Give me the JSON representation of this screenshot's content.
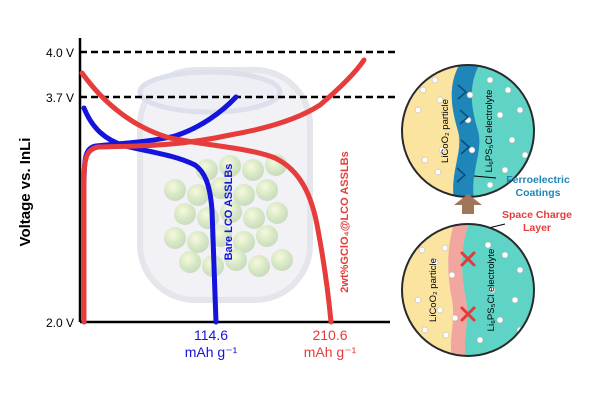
{
  "chart_data": {
    "type": "line",
    "ylabel": "Voltage vs. InLi",
    "y_ticks": [
      "4.0 V",
      "3.7 V",
      "2.0 V"
    ],
    "ref_lines": [
      4.0,
      3.7
    ],
    "capacity_labels": [
      {
        "value": "114.6",
        "unit": "mAh g⁻¹"
      },
      {
        "value": "210.6",
        "unit": "mAh g⁻¹"
      }
    ],
    "series": [
      {
        "name": "Bare LCO ASSLBs",
        "color": "#1414dc"
      },
      {
        "name": "2wt%GClO₄@LCO ASSLBs",
        "color": "#e63c3c"
      }
    ]
  },
  "diagram": {
    "coated": {
      "particle_label": "LiCoO₂ particle",
      "electrolyte_label": "Li₆PS₅Cl electrolyte",
      "coating_label_1": "Ferroelectric",
      "coating_label_2": "Coatings"
    },
    "bare": {
      "particle_label": "LiCoO₂ particle",
      "electrolyte_label": "Li₆PS₅Cl electrolyte",
      "layer_label_1": "Space Charge",
      "layer_label_2": "Layer"
    },
    "colors": {
      "particle": "#fbe3a0",
      "electrolyte": "#5fd3c5",
      "coating": "#1f86b9",
      "charge_layer": "#f2a6a0",
      "arrow": "#a0765a",
      "cross": "#e23a3a"
    }
  }
}
